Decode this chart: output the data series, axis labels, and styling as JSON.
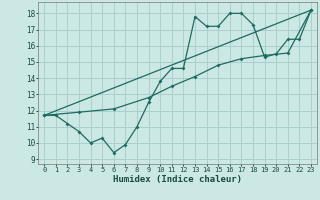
{
  "xlabel": "Humidex (Indice chaleur)",
  "bg_color": "#cce8e4",
  "grid_color": "#aacfcc",
  "line_color": "#1e6b62",
  "xlim": [
    -0.5,
    23.5
  ],
  "ylim": [
    8.7,
    18.7
  ],
  "yticks": [
    9,
    10,
    11,
    12,
    13,
    14,
    15,
    16,
    17,
    18
  ],
  "xticks": [
    0,
    1,
    2,
    3,
    4,
    5,
    6,
    7,
    8,
    9,
    10,
    11,
    12,
    13,
    14,
    15,
    16,
    17,
    18,
    19,
    20,
    21,
    22,
    23
  ],
  "series1_x": [
    0,
    1,
    2,
    3,
    4,
    5,
    6,
    7,
    8,
    9,
    10,
    11,
    12,
    13,
    14,
    15,
    16,
    17,
    18,
    19,
    20,
    21,
    22,
    23
  ],
  "series1_y": [
    11.7,
    11.7,
    11.2,
    10.7,
    10.0,
    10.3,
    9.4,
    9.9,
    11.0,
    12.5,
    13.8,
    14.6,
    14.6,
    17.8,
    17.2,
    17.2,
    18.0,
    18.0,
    17.3,
    15.3,
    15.5,
    16.4,
    16.4,
    18.2
  ],
  "series2_x": [
    0,
    23
  ],
  "series2_y": [
    11.7,
    18.2
  ],
  "series3_x": [
    0,
    3,
    6,
    9,
    11,
    13,
    15,
    17,
    19,
    21,
    23
  ],
  "series3_y": [
    11.7,
    11.9,
    12.1,
    12.8,
    13.5,
    14.1,
    14.8,
    15.2,
    15.4,
    15.55,
    18.2
  ]
}
